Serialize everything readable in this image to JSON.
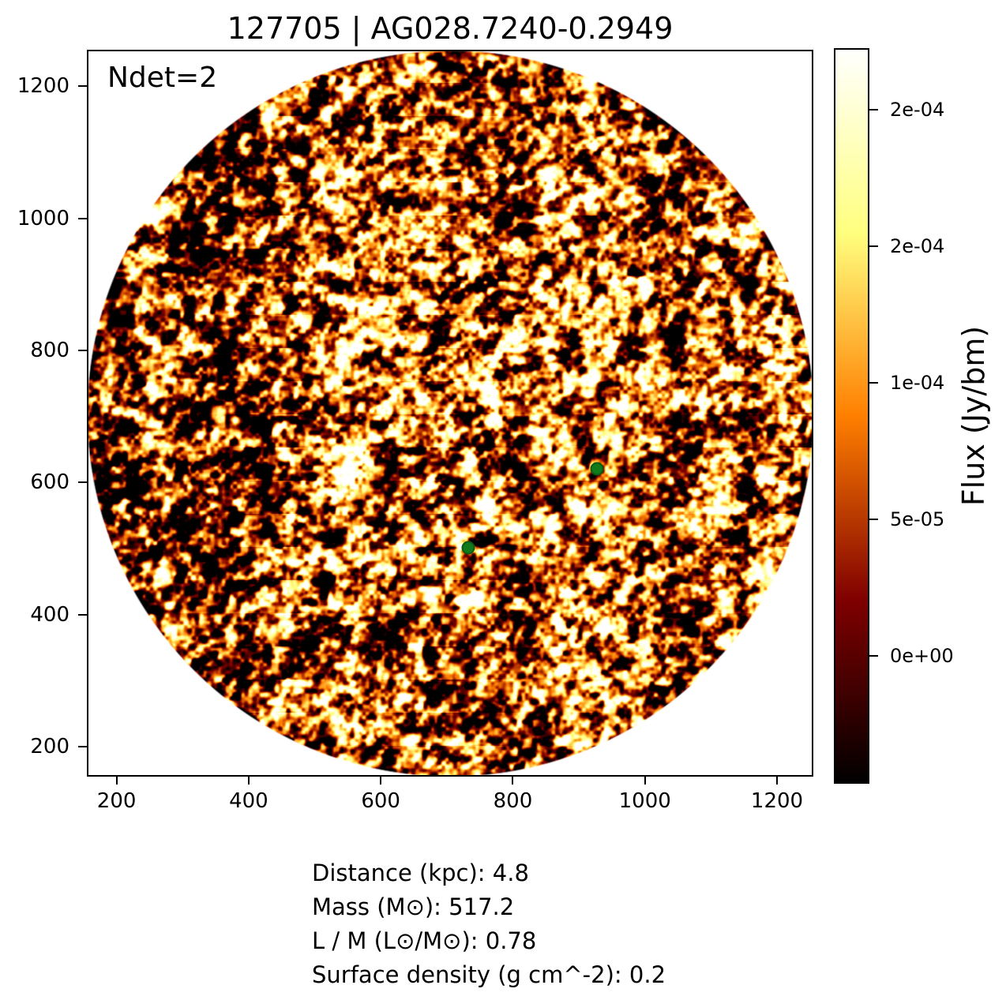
{
  "chart_data": {
    "type": "heatmap",
    "title": "127705 | AG028.7240-0.2949",
    "annotation": "Ndet=2",
    "xlabel": "",
    "ylabel": "",
    "xlim": [
      155,
      1255
    ],
    "ylim": [
      155,
      1255
    ],
    "xticks": [
      200,
      400,
      600,
      800,
      1000,
      1200
    ],
    "yticks": [
      200,
      400,
      600,
      800,
      1000,
      1200
    ],
    "grid": false,
    "image": {
      "description": "circular interferometric continuum flux map filled with speckle noise, white outside the circle",
      "shape": "circle",
      "center_x": 705,
      "center_y": 705,
      "radius": 550,
      "colormap": "afmhot",
      "background": "#ffffff"
    },
    "detections": [
      {
        "x": 927,
        "y": 621
      },
      {
        "x": 732,
        "y": 501
      }
    ],
    "marker_color": "#117a1b",
    "colorbar": {
      "label": "Flux (Jy/bm)",
      "vmin": -4.68e-05,
      "vmax": 0.0002225,
      "ticks": [
        {
          "value": 0.0002,
          "label": "2e-04"
        },
        {
          "value": 0.00015,
          "label": "2e-04"
        },
        {
          "value": 0.0001,
          "label": "1e-04"
        },
        {
          "value": 5e-05,
          "label": "5e-05"
        },
        {
          "value": 0.0,
          "label": "0e+00"
        }
      ]
    },
    "info_lines": [
      "Distance (kpc): 4.8",
      "Mass (M⊙): 517.2",
      "L / M (L⊙/M⊙): 0.78",
      "Surface density (g cm^-2): 0.2"
    ]
  }
}
